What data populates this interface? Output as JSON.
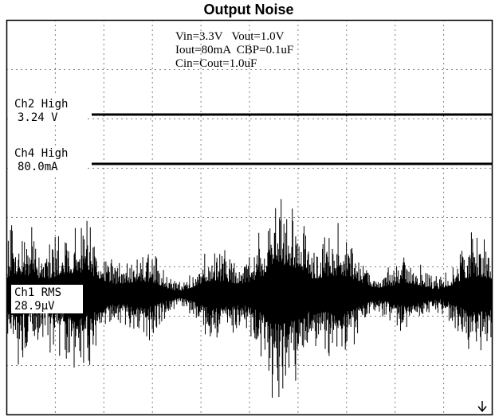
{
  "title": "Output Noise",
  "annotations": [
    "Vin=3.3V   Vout=1.0V",
    "Iout=80mA  CBP=0.1uF",
    "Cin=Cout=1.0uF"
  ],
  "channels": [
    {
      "name": "Ch2 High",
      "reading": "3.24 V"
    },
    {
      "name": "Ch4 High",
      "reading": "80.0mA"
    },
    {
      "name": "Ch1 RMS",
      "reading": "28.9µV"
    }
  ]
}
